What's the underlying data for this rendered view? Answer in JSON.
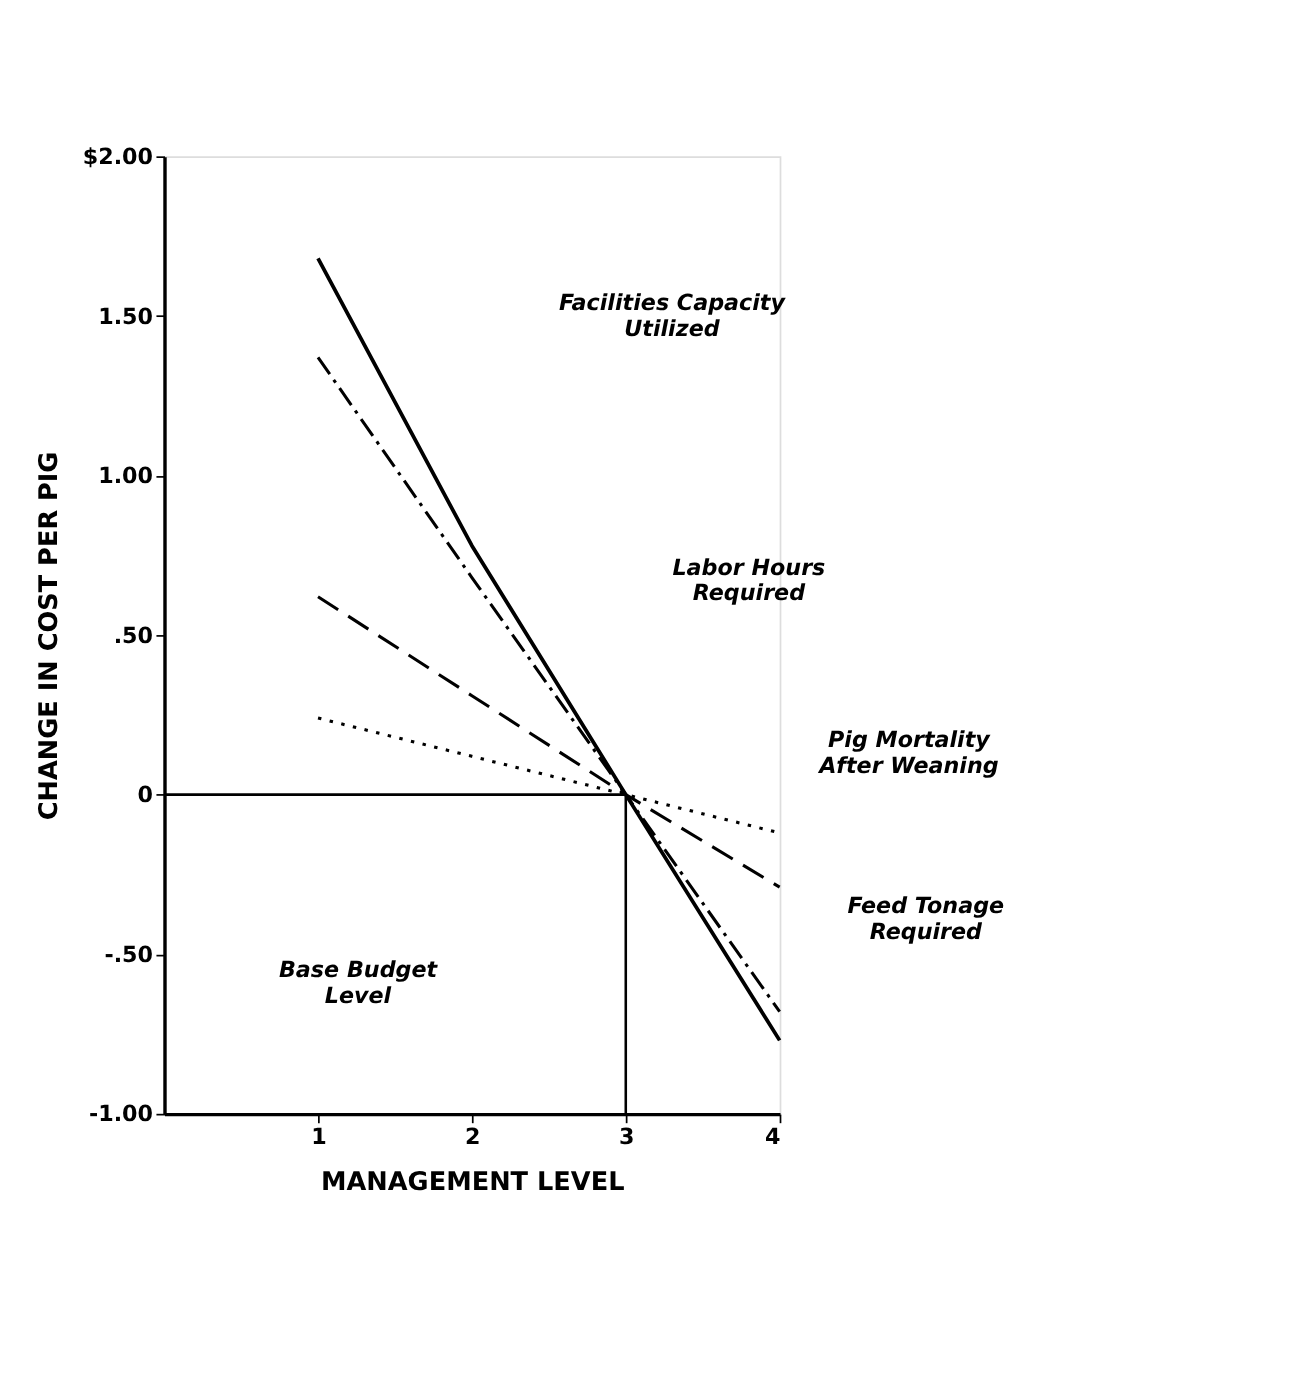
{
  "chart_data": {
    "type": "line",
    "xlabel": "MANAGEMENT LEVEL",
    "ylabel": "CHANGE IN COST PER PIG",
    "x": [
      1,
      2,
      3,
      4
    ],
    "series": [
      {
        "color": "#000000",
        "line_style": "solid",
        "values": [
          1.68,
          0.78,
          0,
          -0.77
        ]
      },
      {
        "color": "#000000",
        "line_style": "dashdot",
        "values": [
          1.37,
          0.68,
          0,
          -0.68
        ]
      },
      {
        "color": "#000000",
        "line_style": "dashed",
        "values": [
          0.62,
          0.31,
          0,
          -0.29
        ]
      },
      {
        "color": "#000000",
        "line_style": "dotted",
        "values": [
          0.24,
          0.12,
          0,
          -0.12
        ]
      }
    ],
    "xlim": [
      0,
      4
    ],
    "xticks": [
      1,
      2,
      3,
      4
    ],
    "ylim": [
      -1,
      2
    ],
    "yticks": [
      {
        "value": 2,
        "label": "$2.00"
      },
      {
        "value": 1.5,
        "label": "1.50"
      },
      {
        "value": 1,
        "label": "1.00"
      },
      {
        "value": 0.5,
        "label": ".50"
      },
      {
        "value": 0,
        "label": "0"
      },
      {
        "value": -0.5,
        "label": "-.50"
      },
      {
        "value": -1,
        "label": "-1.00"
      }
    ],
    "ref_lines": [
      {
        "axis": "y",
        "value": 0,
        "color": "#000000"
      },
      {
        "axis": "x",
        "value": 3,
        "color": "#000000"
      }
    ],
    "annotations": [
      "Facilities Capacity Utilized",
      "Labor Hours Required",
      "Pig Mortality After Weaning",
      "Feed Tonage Required",
      "Base Budget Level"
    ],
    "grid": false,
    "marker": "none"
  }
}
